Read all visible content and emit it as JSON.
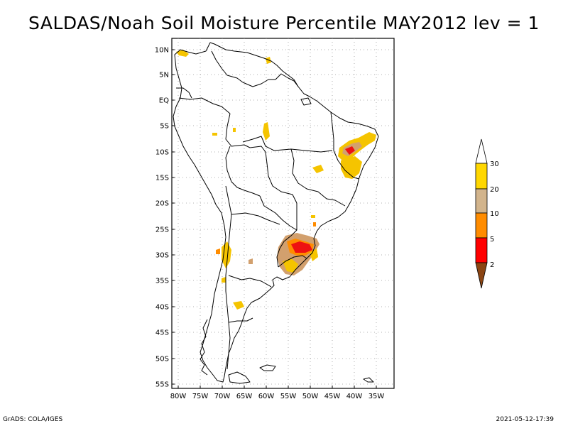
{
  "title": "SALDAS/Noah Soil Moisture Percentile MAY2012 lev = 1",
  "footer": {
    "left": "GrADS: COLA/IGES",
    "right": "2021-05-12-17:39"
  },
  "map": {
    "lat_labels": [
      "10N",
      "5N",
      "EQ",
      "5S",
      "10S",
      "15S",
      "20S",
      "25S",
      "30S",
      "35S",
      "40S",
      "45S",
      "50S",
      "55S"
    ],
    "lon_labels": [
      "80W",
      "75W",
      "70W",
      "65W",
      "60W",
      "55W",
      "50W",
      "45W",
      "40W",
      "35W"
    ],
    "lat_range": [
      -56,
      12
    ],
    "lon_range": [
      -81,
      -31
    ]
  },
  "legend": {
    "labels": [
      "30",
      "20",
      "10",
      "5",
      "2"
    ],
    "colors": {
      "above": "#ffffff",
      "c30": "#ffd700",
      "c20": "#d2b48c",
      "c10": "#ff8c00",
      "c5": "#ff0000",
      "c2": "#8b4513"
    }
  },
  "colors": {
    "yellow": "#f5c400",
    "tan": "#d2a06e",
    "orange": "#ff8c00",
    "red": "#ee1111",
    "darkred": "#aa1100"
  }
}
